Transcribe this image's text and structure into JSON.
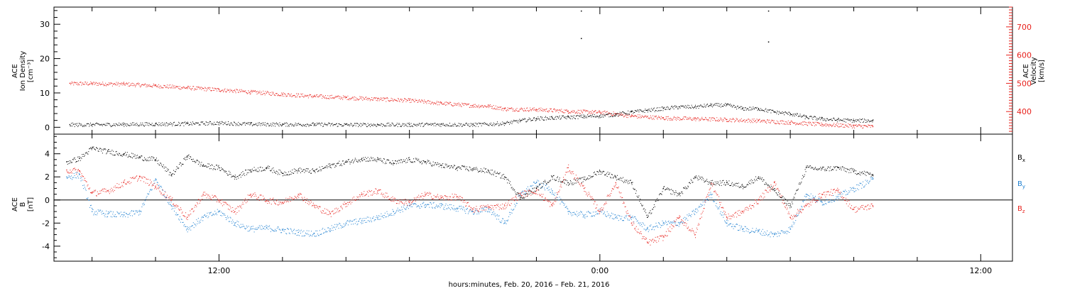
{
  "xaxis": {
    "title": "hours:minutes, Feb. 20, 2016 – Feb. 21, 2016",
    "range_hours": [
      6.8,
      37.0
    ],
    "major_ticks": [
      {
        "h": 12,
        "label": "12:00"
      },
      {
        "h": 24,
        "label": "0:00"
      },
      {
        "h": 36,
        "label": "12:00"
      }
    ],
    "minor_step_hours": 2
  },
  "colors": {
    "black": "#000000",
    "red": "#e8221d",
    "blue": "#1d7fd0"
  },
  "chart_data": [
    {
      "type": "scatter",
      "left_ylabel": [
        "ACE",
        "Ion Density",
        "[cm⁻³]"
      ],
      "right_ylabel": [
        "ACE",
        "Velocity",
        "[km/s]"
      ],
      "left_ylim": [
        -2,
        35
      ],
      "left_ticks": [
        0,
        10,
        20,
        30
      ],
      "right_ylim": [
        320,
        770
      ],
      "right_ticks": [
        400,
        500,
        600,
        700
      ],
      "series": [
        {
          "name": "Ion Density",
          "axis": "left",
          "color": "#000000",
          "points": [
            [
              7.3,
              0.8
            ],
            [
              8,
              0.8
            ],
            [
              9,
              0.9
            ],
            [
              10,
              1.0
            ],
            [
              11,
              1.1
            ],
            [
              12,
              1.3
            ],
            [
              13,
              1.0
            ],
            [
              14,
              0.9
            ],
            [
              15,
              0.9
            ],
            [
              16,
              0.8
            ],
            [
              17,
              0.8
            ],
            [
              18,
              0.8
            ],
            [
              19,
              0.9
            ],
            [
              20,
              0.8
            ],
            [
              21,
              1.2
            ],
            [
              21.5,
              2.0
            ],
            [
              22,
              2.6
            ],
            [
              22.5,
              2.8
            ],
            [
              23,
              3.0
            ],
            [
              23.5,
              3.2
            ],
            [
              24,
              3.4
            ],
            [
              24.5,
              3.8
            ],
            [
              25,
              4.5
            ],
            [
              25.5,
              5.0
            ],
            [
              26,
              5.5
            ],
            [
              26.5,
              6.0
            ],
            [
              27,
              6.0
            ],
            [
              27.5,
              6.5
            ],
            [
              28,
              6.5
            ],
            [
              28.5,
              5.5
            ],
            [
              29,
              5.5
            ],
            [
              29.5,
              4.5
            ],
            [
              30,
              4.0
            ],
            [
              30.5,
              3.0
            ],
            [
              31,
              2.5
            ],
            [
              31.5,
              2.2
            ],
            [
              32,
              2.0
            ],
            [
              32.6,
              2.0
            ]
          ]
        },
        {
          "name": "Velocity",
          "axis": "right",
          "color": "#e8221d",
          "points": [
            [
              7.3,
              500
            ],
            [
              8,
              500
            ],
            [
              9,
              498
            ],
            [
              10,
              492
            ],
            [
              11,
              485
            ],
            [
              12,
              478
            ],
            [
              13,
              470
            ],
            [
              14,
              462
            ],
            [
              15,
              455
            ],
            [
              16,
              450
            ],
            [
              17,
              445
            ],
            [
              18,
              440
            ],
            [
              19,
              430
            ],
            [
              20,
              422
            ],
            [
              20.5,
              420
            ],
            [
              21,
              410
            ],
            [
              22,
              408
            ],
            [
              23,
              402
            ],
            [
              24,
              398
            ],
            [
              24.5,
              392
            ],
            [
              25,
              385
            ],
            [
              26,
              378
            ],
            [
              27,
              375
            ],
            [
              28,
              372
            ],
            [
              29,
              368
            ],
            [
              30,
              362
            ],
            [
              31,
              355
            ],
            [
              32,
              350
            ],
            [
              32.6,
              348
            ]
          ]
        }
      ]
    },
    {
      "type": "scatter",
      "ylabel": [
        "ACE",
        "B",
        "[nT]"
      ],
      "ylim": [
        -5.3,
        5.7
      ],
      "yticks": [
        -4,
        -2,
        0,
        2,
        4
      ],
      "legend": [
        {
          "main": "B",
          "sub": "x",
          "color": "#000000"
        },
        {
          "main": "B",
          "sub": "y",
          "color": "#1d7fd0"
        },
        {
          "main": "B",
          "sub": "z",
          "color": "#e8221d"
        }
      ],
      "series": [
        {
          "name": "Bx",
          "color": "#000000",
          "points": [
            [
              7.2,
              3.3
            ],
            [
              7.6,
              3.6
            ],
            [
              8.0,
              4.5
            ],
            [
              8.5,
              4.2
            ],
            [
              9,
              4.0
            ],
            [
              9.5,
              3.7
            ],
            [
              10,
              3.5
            ],
            [
              10.5,
              2.2
            ],
            [
              11,
              3.8
            ],
            [
              11.5,
              3.0
            ],
            [
              12,
              2.8
            ],
            [
              12.5,
              2.0
            ],
            [
              13,
              2.6
            ],
            [
              13.5,
              2.8
            ],
            [
              14,
              2.3
            ],
            [
              14.5,
              2.6
            ],
            [
              15,
              2.5
            ],
            [
              15.5,
              3.0
            ],
            [
              16,
              3.3
            ],
            [
              16.5,
              3.6
            ],
            [
              17,
              3.5
            ],
            [
              17.5,
              3.2
            ],
            [
              18,
              3.5
            ],
            [
              18.5,
              3.3
            ],
            [
              19,
              3.0
            ],
            [
              19.5,
              2.8
            ],
            [
              20,
              2.7
            ],
            [
              20.5,
              2.5
            ],
            [
              21,
              2.0
            ],
            [
              21.5,
              0.2
            ],
            [
              22,
              1.0
            ],
            [
              22.5,
              2.0
            ],
            [
              23,
              1.5
            ],
            [
              23.5,
              1.8
            ],
            [
              24,
              2.5
            ],
            [
              24.5,
              2.0
            ],
            [
              25,
              1.5
            ],
            [
              25.5,
              -1.5
            ],
            [
              26,
              1.0
            ],
            [
              26.5,
              0.5
            ],
            [
              27,
              2.0
            ],
            [
              27.5,
              1.5
            ],
            [
              28,
              1.5
            ],
            [
              28.5,
              1.2
            ],
            [
              29,
              2.0
            ],
            [
              29.5,
              0.8
            ],
            [
              30,
              -0.5
            ],
            [
              30.5,
              2.8
            ],
            [
              31,
              2.7
            ],
            [
              31.5,
              2.8
            ],
            [
              32,
              2.5
            ],
            [
              32.6,
              2.2
            ]
          ]
        },
        {
          "name": "By",
          "color": "#1d7fd0",
          "points": [
            [
              7.2,
              2.0
            ],
            [
              7.6,
              2.2
            ],
            [
              8,
              -1.0
            ],
            [
              8.5,
              -1.2
            ],
            [
              9,
              -1.3
            ],
            [
              9.5,
              -1.0
            ],
            [
              10,
              1.8
            ],
            [
              10.5,
              -0.5
            ],
            [
              11,
              -2.5
            ],
            [
              11.5,
              -1.5
            ],
            [
              12,
              -1.0
            ],
            [
              12.5,
              -2.0
            ],
            [
              13,
              -2.5
            ],
            [
              13.5,
              -2.4
            ],
            [
              14,
              -2.6
            ],
            [
              14.5,
              -2.8
            ],
            [
              15,
              -2.9
            ],
            [
              15.5,
              -2.5
            ],
            [
              16,
              -2.0
            ],
            [
              16.5,
              -1.8
            ],
            [
              17,
              -1.5
            ],
            [
              17.5,
              -1.0
            ],
            [
              18,
              -0.5
            ],
            [
              18.5,
              -0.4
            ],
            [
              19,
              -0.5
            ],
            [
              19.5,
              -0.7
            ],
            [
              20,
              -1.0
            ],
            [
              20.5,
              -0.8
            ],
            [
              21,
              -2.0
            ],
            [
              21.5,
              0.5
            ],
            [
              22,
              1.5
            ],
            [
              22.5,
              0.8
            ],
            [
              23,
              -1.0
            ],
            [
              23.5,
              -1.3
            ],
            [
              24,
              -1.0
            ],
            [
              24.5,
              -1.5
            ],
            [
              25,
              -1.5
            ],
            [
              25.5,
              -2.5
            ],
            [
              26,
              -2.0
            ],
            [
              26.5,
              -2.0
            ],
            [
              27,
              -1.0
            ],
            [
              27.5,
              0.5
            ],
            [
              28,
              -2.0
            ],
            [
              28.5,
              -2.5
            ],
            [
              29,
              -2.7
            ],
            [
              29.5,
              -3.0
            ],
            [
              30,
              -2.5
            ],
            [
              30.5,
              0.5
            ],
            [
              31,
              -0.2
            ],
            [
              31.5,
              0.3
            ],
            [
              32,
              1.0
            ],
            [
              32.6,
              1.8
            ]
          ]
        },
        {
          "name": "Bz",
          "color": "#e8221d",
          "points": [
            [
              7.2,
              2.6
            ],
            [
              7.6,
              2.5
            ],
            [
              8,
              0.6
            ],
            [
              8.5,
              0.8
            ],
            [
              9,
              1.5
            ],
            [
              9.5,
              2.0
            ],
            [
              10,
              1.2
            ],
            [
              10.5,
              0.0
            ],
            [
              11,
              -1.5
            ],
            [
              11.5,
              0.5
            ],
            [
              12,
              0.0
            ],
            [
              12.5,
              -1.0
            ],
            [
              13,
              0.5
            ],
            [
              13.5,
              0.0
            ],
            [
              14,
              -0.2
            ],
            [
              14.5,
              0.5
            ],
            [
              15,
              -0.5
            ],
            [
              15.5,
              -1.2
            ],
            [
              16,
              -0.3
            ],
            [
              16.5,
              0.5
            ],
            [
              17,
              0.8
            ],
            [
              17.5,
              0.0
            ],
            [
              18,
              -0.2
            ],
            [
              18.5,
              0.5
            ],
            [
              19,
              0.2
            ],
            [
              19.5,
              0.3
            ],
            [
              20,
              -0.8
            ],
            [
              20.5,
              -0.6
            ],
            [
              21,
              -0.5
            ],
            [
              21.5,
              0.5
            ],
            [
              22,
              0.8
            ],
            [
              22.5,
              -0.5
            ],
            [
              23,
              2.8
            ],
            [
              23.5,
              1.0
            ],
            [
              24,
              -1.0
            ],
            [
              24.5,
              1.5
            ],
            [
              25,
              -2.0
            ],
            [
              25.5,
              -3.7
            ],
            [
              26,
              -3.2
            ],
            [
              26.5,
              -1.5
            ],
            [
              27,
              -3.0
            ],
            [
              27.5,
              1.5
            ],
            [
              28,
              -1.5
            ],
            [
              28.5,
              -1.0
            ],
            [
              29,
              0.0
            ],
            [
              29.5,
              1.5
            ],
            [
              30,
              -1.5
            ],
            [
              30.5,
              -0.5
            ],
            [
              31,
              0.5
            ],
            [
              31.5,
              0.8
            ],
            [
              32,
              -0.8
            ],
            [
              32.6,
              -0.5
            ]
          ]
        }
      ]
    }
  ]
}
